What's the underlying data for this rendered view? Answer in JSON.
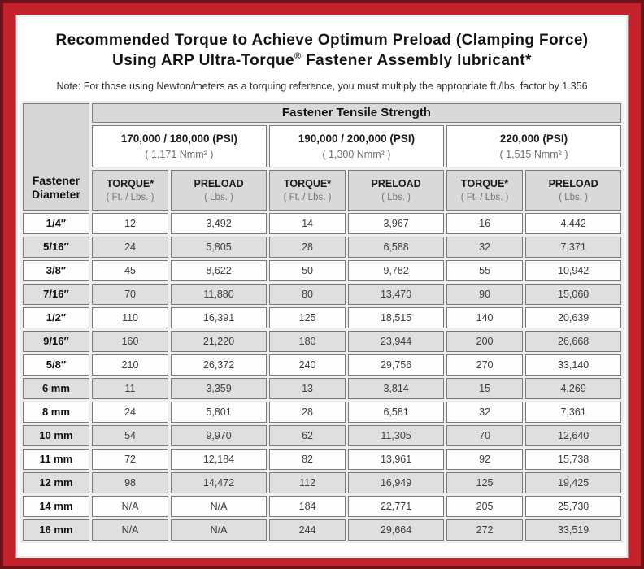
{
  "colors": {
    "frame_red": "#c5212a",
    "frame_dark_red": "#6e1117",
    "cell_shade_gray": "#dfdfdf",
    "header_gray": "#d9d9d9",
    "cell_border_gray": "#7a7a7a"
  },
  "header": {
    "title_line1": "Recommended Torque to Achieve Optimum Preload (Clamping Force)",
    "title_line2_pre": "Using ARP Ultra-Torque",
    "title_line2_sup": "®",
    "title_line2_post": " Fastener Assembly lubricant*",
    "note": "Note: For those using Newton/meters as a torquing reference, you must multiply the appropriate ft./lbs. factor by 1.356"
  },
  "table": {
    "corner_label": "Fastener Diameter",
    "group_label": "Fastener Tensile Strength",
    "strength_groups": [
      {
        "psi": "170,000 / 180,000 (PSI)",
        "nmm": "( 1,171 Nmm² )"
      },
      {
        "psi": "190,000 / 200,000 (PSI)",
        "nmm": "( 1,300 Nmm² )"
      },
      {
        "psi": "220,000 (PSI)",
        "nmm": "( 1,515 Nmm² )"
      }
    ],
    "sub_headers": {
      "torque_label": "TORQUE*",
      "torque_unit": "( Ft. / Lbs. )",
      "preload_label": "PRELOAD",
      "preload_unit": "( Lbs. )"
    },
    "rows": [
      {
        "diameter": "1/4″",
        "values": [
          "12",
          "3,492",
          "14",
          "3,967",
          "16",
          "4,442"
        ]
      },
      {
        "diameter": "5/16″",
        "values": [
          "24",
          "5,805",
          "28",
          "6,588",
          "32",
          "7,371"
        ]
      },
      {
        "diameter": "3/8″",
        "values": [
          "45",
          "8,622",
          "50",
          "9,782",
          "55",
          "10,942"
        ]
      },
      {
        "diameter": "7/16″",
        "values": [
          "70",
          "11,880",
          "80",
          "13,470",
          "90",
          "15,060"
        ]
      },
      {
        "diameter": "1/2″",
        "values": [
          "110",
          "16,391",
          "125",
          "18,515",
          "140",
          "20,639"
        ]
      },
      {
        "diameter": "9/16″",
        "values": [
          "160",
          "21,220",
          "180",
          "23,944",
          "200",
          "26,668"
        ]
      },
      {
        "diameter": "5/8″",
        "values": [
          "210",
          "26,372",
          "240",
          "29,756",
          "270",
          "33,140"
        ]
      },
      {
        "diameter": "6 mm",
        "values": [
          "11",
          "3,359",
          "13",
          "3,814",
          "15",
          "4,269"
        ]
      },
      {
        "diameter": "8 mm",
        "values": [
          "24",
          "5,801",
          "28",
          "6,581",
          "32",
          "7,361"
        ]
      },
      {
        "diameter": "10 mm",
        "values": [
          "54",
          "9,970",
          "62",
          "11,305",
          "70",
          "12,640"
        ]
      },
      {
        "diameter": "11 mm",
        "values": [
          "72",
          "12,184",
          "82",
          "13,961",
          "92",
          "15,738"
        ]
      },
      {
        "diameter": "12 mm",
        "values": [
          "98",
          "14,472",
          "112",
          "16,949",
          "125",
          "19,425"
        ]
      },
      {
        "diameter": "14 mm",
        "values": [
          "N/A",
          "N/A",
          "184",
          "22,771",
          "205",
          "25,730"
        ]
      },
      {
        "diameter": "16 mm",
        "values": [
          "N/A",
          "N/A",
          "244",
          "29,664",
          "272",
          "33,519"
        ]
      }
    ]
  }
}
